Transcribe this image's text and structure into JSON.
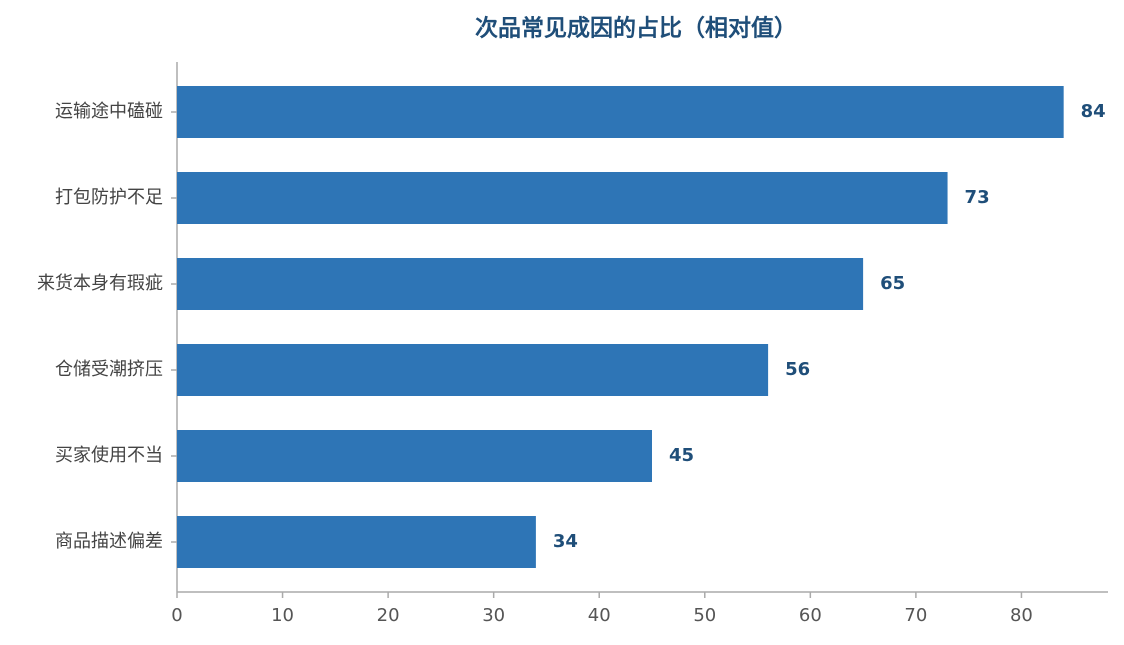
{
  "chart_data": {
    "type": "bar",
    "orientation": "horizontal",
    "title": "次品常见成因的占比（相对值）",
    "categories": [
      "运输途中磕碰",
      "打包防护不足",
      "来货本身有瑕疵",
      "仓储受潮挤压",
      "买家使用不当",
      "商品描述偏差"
    ],
    "values": [
      84,
      73,
      65,
      56,
      45,
      34
    ],
    "color": "#2e75b6",
    "xlim": [
      0,
      88.2
    ],
    "xticks": [
      0,
      10,
      20,
      30,
      40,
      50,
      60,
      70,
      80
    ],
    "grid": false
  }
}
